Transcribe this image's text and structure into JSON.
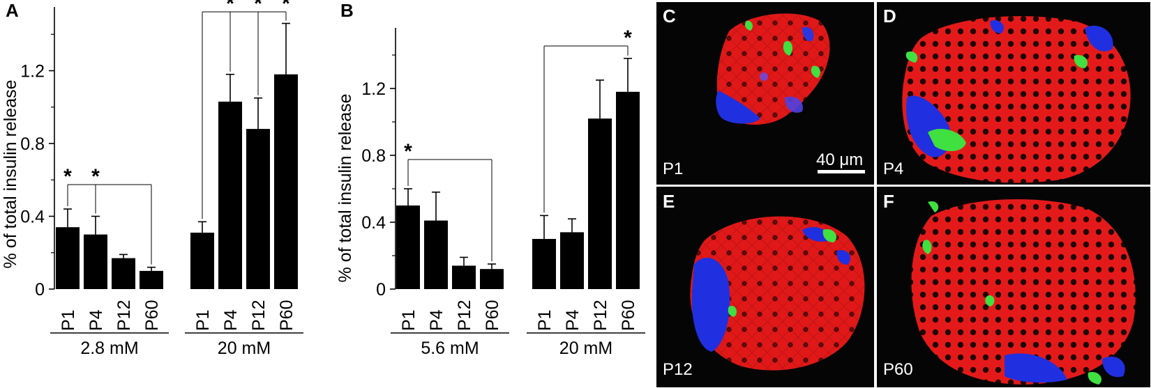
{
  "chart_data": [
    {
      "type": "bar",
      "panel": "A",
      "ylabel": "% of total insulin release",
      "ylim": [
        0,
        1.5
      ],
      "yticks": [
        "0",
        "0.4",
        "0.8",
        "1.2"
      ],
      "groups": [
        {
          "label": "2.8 mM",
          "categories": [
            "P1",
            "P4",
            "P12",
            "P60"
          ],
          "values": [
            0.34,
            0.3,
            0.17,
            0.1
          ],
          "errors": [
            0.1,
            0.1,
            0.02,
            0.02
          ]
        },
        {
          "label": "20 mM",
          "categories": [
            "P1",
            "P4",
            "P12",
            "P60"
          ],
          "values": [
            0.31,
            1.03,
            0.88,
            1.18
          ],
          "errors": [
            0.06,
            0.15,
            0.17,
            0.28
          ]
        }
      ],
      "significance": "*"
    },
    {
      "type": "bar",
      "panel": "B",
      "ylabel": "% of total insulin release",
      "ylim": [
        0,
        1.5
      ],
      "yticks": [
        "0",
        "0.4",
        "0.8",
        "1.2"
      ],
      "groups": [
        {
          "label": "5.6 mM",
          "categories": [
            "P1",
            "P4",
            "P12",
            "P60"
          ],
          "values": [
            0.5,
            0.41,
            0.14,
            0.12
          ],
          "errors": [
            0.1,
            0.17,
            0.05,
            0.03
          ]
        },
        {
          "label": "20 mM",
          "categories": [
            "P1",
            "P4",
            "P12",
            "P60"
          ],
          "values": [
            0.3,
            0.34,
            1.02,
            1.18
          ],
          "errors": [
            0.14,
            0.08,
            0.23,
            0.2
          ]
        }
      ],
      "significance": "*"
    }
  ],
  "micrographs": [
    {
      "letter": "C",
      "label": "P1"
    },
    {
      "letter": "D",
      "label": "P4"
    },
    {
      "letter": "E",
      "label": "P12"
    },
    {
      "letter": "F",
      "label": "P60"
    }
  ],
  "scale_bar": "40 μm",
  "colors": {
    "bar": "#000000",
    "background_micro": "#050505",
    "beta": "#e01818",
    "alpha": "#2030e0",
    "delta": "#30e030"
  }
}
